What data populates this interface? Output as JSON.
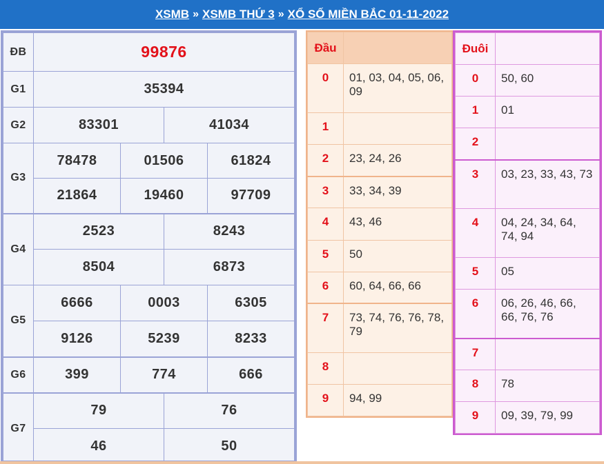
{
  "breadcrumb": {
    "items": [
      "XSMB",
      "XSMB THỨ 3",
      "XỔ SỐ MIỀN BẮC 01-11-2022"
    ],
    "separator": "»"
  },
  "results": {
    "db": {
      "label": "ĐB",
      "values": [
        "99876"
      ]
    },
    "g1": {
      "label": "G1",
      "values": [
        "35394"
      ]
    },
    "g2": {
      "label": "G2",
      "values": [
        "83301",
        "41034"
      ]
    },
    "g3": {
      "label": "G3",
      "values": [
        "78478",
        "01506",
        "61824",
        "21864",
        "19460",
        "97709"
      ]
    },
    "g4": {
      "label": "G4",
      "values": [
        "2523",
        "8243",
        "8504",
        "6873"
      ]
    },
    "g5": {
      "label": "G5",
      "values": [
        "6666",
        "0003",
        "6305",
        "9126",
        "5239",
        "8233"
      ]
    },
    "g6": {
      "label": "G6",
      "values": [
        "399",
        "774",
        "666"
      ]
    },
    "g7": {
      "label": "G7",
      "values": [
        "79",
        "76",
        "46",
        "50"
      ]
    }
  },
  "dau": {
    "header": "Đầu",
    "rows": [
      {
        "key": "0",
        "value": "01, 03, 04, 05, 06, 09"
      },
      {
        "key": "1",
        "value": ""
      },
      {
        "key": "2",
        "value": "23, 24, 26"
      },
      {
        "key": "3",
        "value": "33, 34, 39"
      },
      {
        "key": "4",
        "value": "43, 46"
      },
      {
        "key": "5",
        "value": "50"
      },
      {
        "key": "6",
        "value": "60, 64, 66, 66"
      },
      {
        "key": "7",
        "value": "73, 74, 76, 76, 78, 79"
      },
      {
        "key": "8",
        "value": ""
      },
      {
        "key": "9",
        "value": "94, 99"
      }
    ]
  },
  "duoi": {
    "header": "Đuôi",
    "rows": [
      {
        "key": "0",
        "value": "50, 60"
      },
      {
        "key": "1",
        "value": "01"
      },
      {
        "key": "2",
        "value": ""
      },
      {
        "key": "3",
        "value": "03, 23, 33, 43, 73"
      },
      {
        "key": "4",
        "value": "04, 24, 34, 64, 74, 94"
      },
      {
        "key": "5",
        "value": "05"
      },
      {
        "key": "6",
        "value": "06, 26, 46, 66, 66, 76, 76"
      },
      {
        "key": "7",
        "value": ""
      },
      {
        "key": "8",
        "value": "78"
      },
      {
        "key": "9",
        "value": "09, 39, 79, 99"
      }
    ]
  },
  "colors": {
    "header_bg": "#2071c7",
    "special_prize": "#e3111a",
    "results_border": "#9aa3d6",
    "dau_border": "#f0b48b",
    "duoi_border": "#cc5bd0"
  }
}
